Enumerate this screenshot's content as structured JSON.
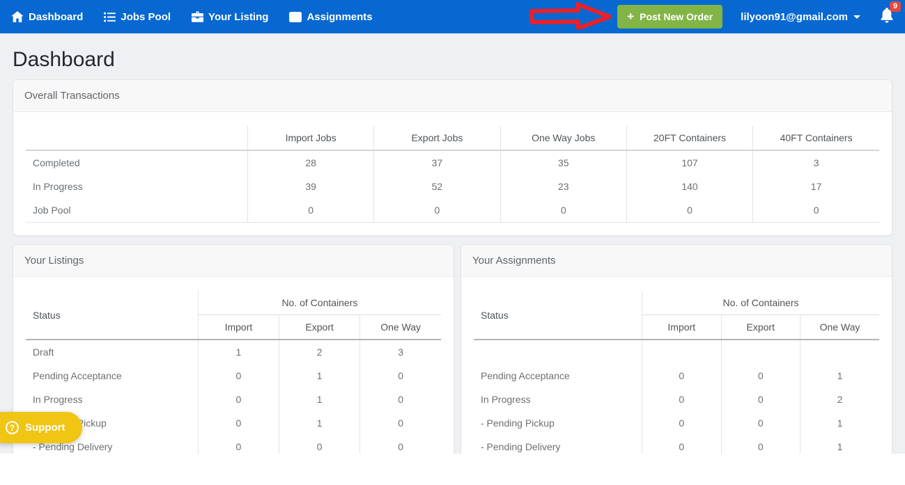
{
  "colors": {
    "navbar_blue": "#0768d1",
    "button_green": "#82b546",
    "badge_red": "#e8473e",
    "arrow_red": "#ec2027",
    "support_yellow": "#f0c514",
    "page_bg": "#eef0f4"
  },
  "navbar": {
    "items": [
      {
        "label": "Dashboard",
        "icon": "home-icon"
      },
      {
        "label": "Jobs Pool",
        "icon": "list-icon"
      },
      {
        "label": "Your Listing",
        "icon": "briefcase-icon"
      },
      {
        "label": "Assignments",
        "icon": "inbox-icon"
      }
    ],
    "post_new_order_label": "Post New Order",
    "user_email": "lilyoon91@gmail.com",
    "notification_count": "9"
  },
  "page": {
    "title": "Dashboard"
  },
  "overall_transactions": {
    "title": "Overall Transactions",
    "columns": [
      "Import Jobs",
      "Export Jobs",
      "One Way Jobs",
      "20FT Containers",
      "40FT Containers"
    ],
    "rows": [
      {
        "label": "Completed",
        "values": [
          "28",
          "37",
          "35",
          "107",
          "3"
        ]
      },
      {
        "label": "In Progress",
        "values": [
          "39",
          "52",
          "23",
          "140",
          "17"
        ]
      },
      {
        "label": "Job Pool",
        "values": [
          "0",
          "0",
          "0",
          "0",
          "0"
        ]
      }
    ]
  },
  "your_listings": {
    "title": "Your Listings",
    "status_header": "Status",
    "group_header": "No. of Containers",
    "columns": [
      "Import",
      "Export",
      "One Way"
    ],
    "rows": [
      {
        "label": "Draft",
        "values": [
          "1",
          "2",
          "3"
        ]
      },
      {
        "label": "Pending Acceptance",
        "values": [
          "0",
          "1",
          "0"
        ]
      },
      {
        "label": "In Progress",
        "values": [
          "0",
          "1",
          "0"
        ]
      },
      {
        "label": "- Pending Pickup",
        "values": [
          "0",
          "1",
          "0"
        ]
      },
      {
        "label": "- Pending Delivery",
        "values": [
          "0",
          "0",
          "0"
        ]
      }
    ]
  },
  "your_assignments": {
    "title": "Your Assignments",
    "status_header": "Status",
    "group_header": "No. of Containers",
    "columns": [
      "Import",
      "Export",
      "One Way"
    ],
    "rows": [
      {
        "label": "",
        "values": [
          "",
          "",
          ""
        ]
      },
      {
        "label": "Pending Acceptance",
        "values": [
          "0",
          "0",
          "1"
        ]
      },
      {
        "label": "In Progress",
        "values": [
          "0",
          "0",
          "2"
        ]
      },
      {
        "label": "- Pending Pickup",
        "values": [
          "0",
          "0",
          "1"
        ]
      },
      {
        "label": "- Pending Delivery",
        "values": [
          "0",
          "0",
          "1"
        ]
      }
    ]
  },
  "support": {
    "label": "Support"
  }
}
